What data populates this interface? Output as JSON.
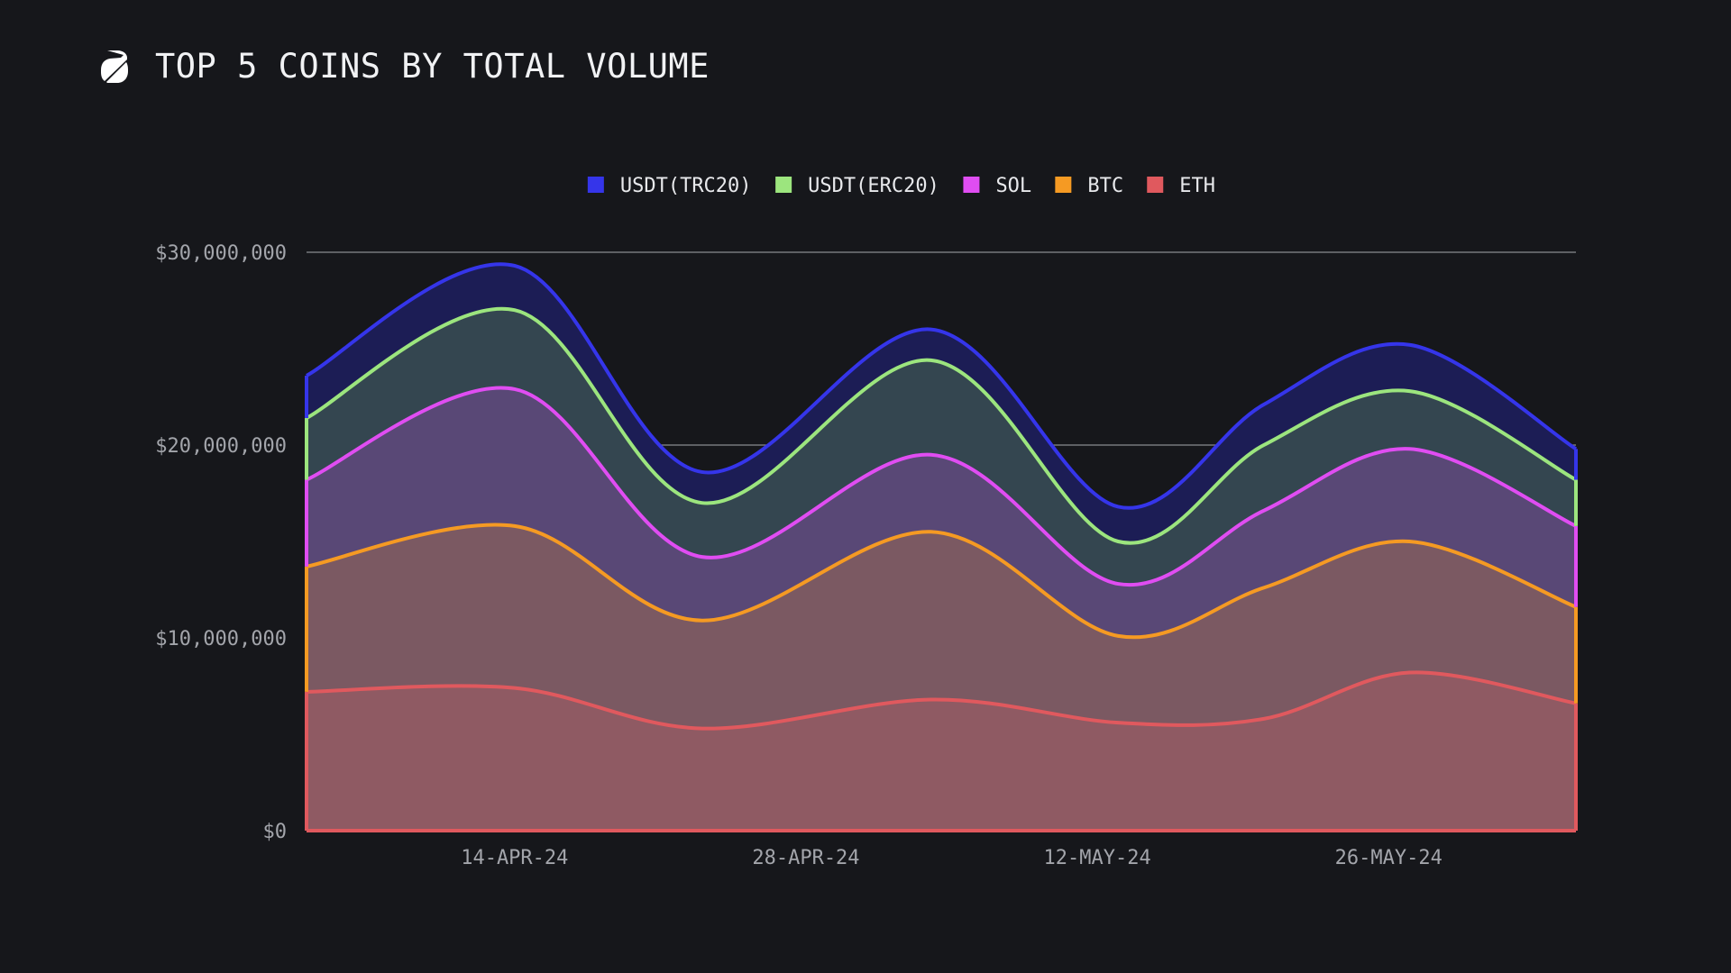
{
  "header": {
    "title": "TOP 5 COINS BY TOTAL VOLUME",
    "logo_icon": "logo-s-icon"
  },
  "chart_data": {
    "type": "area",
    "stacked": true,
    "title": "TOP 5 COINS BY TOTAL VOLUME",
    "x": [
      "2024-04-04",
      "2024-04-14",
      "2024-04-23",
      "2024-05-04",
      "2024-05-13",
      "2024-05-20",
      "2024-05-27",
      "2024-06-04"
    ],
    "x_tick_labels": [
      "14-APR-24",
      "28-APR-24",
      "12-MAY-24",
      "26-MAY-24"
    ],
    "x_ticks": [
      "2024-04-14",
      "2024-04-28",
      "2024-05-12",
      "2024-05-26"
    ],
    "y_tick_labels": [
      "$0",
      "$10,000,000",
      "$20,000,000",
      "$30,000,000"
    ],
    "y_ticks": [
      0,
      10000000,
      20000000,
      30000000
    ],
    "ylim": [
      0,
      30000000
    ],
    "legend_position": "top-center",
    "grid": "horizontal",
    "series": [
      {
        "name": "ETH",
        "color": "#e0595e",
        "values": [
          7200000,
          7400000,
          5300000,
          6800000,
          5600000,
          5800000,
          8200000,
          6600000
        ]
      },
      {
        "name": "BTC",
        "color": "#f59a23",
        "values": [
          6500000,
          8400000,
          5600000,
          8700000,
          4500000,
          6800000,
          6800000,
          5000000
        ]
      },
      {
        "name": "SOL",
        "color": "#e04df2",
        "values": [
          4500000,
          7100000,
          3300000,
          4000000,
          2700000,
          4000000,
          4800000,
          4200000
        ]
      },
      {
        "name": "USDT(ERC20)",
        "color": "#9ce57e",
        "values": [
          3200000,
          4100000,
          2800000,
          4900000,
          2200000,
          3400000,
          3000000,
          2400000
        ]
      },
      {
        "name": "USDT(TRC20)",
        "color": "#3535ea",
        "values": [
          2200000,
          2300000,
          1600000,
          1600000,
          1800000,
          2100000,
          2400000,
          1600000
        ]
      }
    ],
    "legend_order": [
      "USDT(TRC20)",
      "USDT(ERC20)",
      "SOL",
      "BTC",
      "ETH"
    ],
    "fill_colors": {
      "ETH": "#8f5a63",
      "BTC": "#7b5962",
      "SOL": "#594876",
      "USDT(ERC20)": "#344650",
      "USDT(TRC20)": "#1c1d55"
    }
  }
}
